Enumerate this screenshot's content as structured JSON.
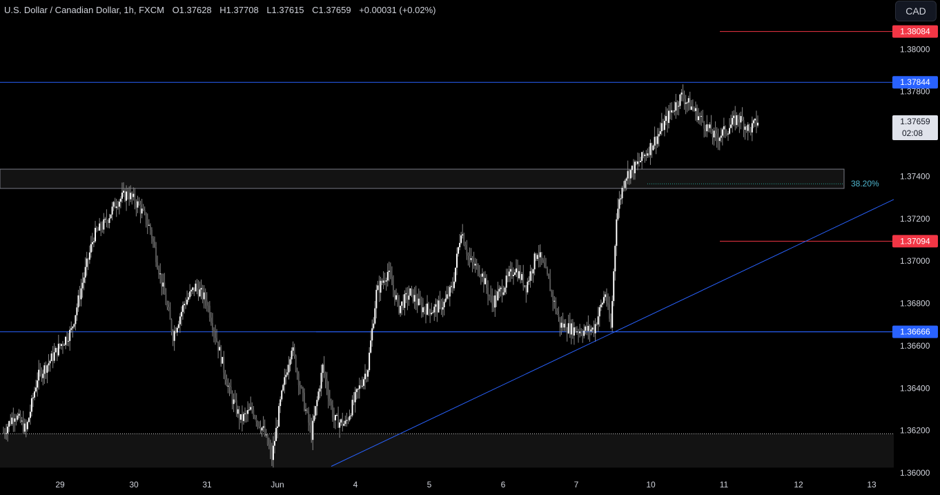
{
  "header": {
    "symbol": "U.S. Dollar / Canadian Dollar, 1h, FXCM",
    "open": "O1.37628",
    "high": "H1.37708",
    "low": "L1.37615",
    "close": "C1.37659",
    "change": "+0.00031 (+0.02%)"
  },
  "currency_button": "CAD",
  "chart_data": {
    "type": "candlestick",
    "x_ticks": [
      "29",
      "30",
      "31",
      "Jun",
      "4",
      "5",
      "6",
      "7",
      "10",
      "11",
      "12",
      "13"
    ],
    "y_ticks": [
      1.36,
      1.362,
      1.364,
      1.366,
      1.368,
      1.37,
      1.372,
      1.374,
      1.376,
      1.378,
      1.38
    ],
    "ylim": [
      1.36,
      1.382
    ],
    "price_labels": [
      {
        "value": 1.38084,
        "text": "1.38084",
        "color": "#f23645"
      },
      {
        "value": 1.37844,
        "text": "1.37844",
        "color": "#2962ff"
      },
      {
        "value": 1.37659,
        "text": "1.37659",
        "sub": "02:08",
        "color": "#e0e3eb"
      },
      {
        "value": 1.37094,
        "text": "1.37094",
        "color": "#f23645"
      },
      {
        "value": 1.36666,
        "text": "1.36666",
        "color": "#2962ff"
      }
    ],
    "levels": [
      {
        "value": 1.38084,
        "color": "#f23645"
      },
      {
        "value": 1.37844,
        "color": "#2962ff"
      },
      {
        "value": 1.37094,
        "color": "#f23645"
      },
      {
        "value": 1.36666,
        "color": "#2962ff"
      }
    ],
    "zones": [
      {
        "from": 1.37343,
        "to": 1.37434
      },
      {
        "from": 1.36025,
        "to": 1.36185
      }
    ],
    "fib_label": "38.20%",
    "fib_value": 1.37365,
    "trendline": {
      "from": 1.36031,
      "to": 1.37291
    },
    "candles_hint": "approximate hourly OHLC path",
    "path": [
      [
        0,
        1.3619
      ],
      [
        8,
        1.3628
      ],
      [
        16,
        1.362
      ],
      [
        24,
        1.3645
      ],
      [
        32,
        1.3652
      ],
      [
        40,
        1.366
      ],
      [
        48,
        1.3667
      ],
      [
        56,
        1.369
      ],
      [
        64,
        1.3712
      ],
      [
        72,
        1.3718
      ],
      [
        80,
        1.3728
      ],
      [
        88,
        1.3732
      ],
      [
        96,
        1.3726
      ],
      [
        104,
        1.3715
      ],
      [
        112,
        1.369
      ],
      [
        120,
        1.3665
      ],
      [
        128,
        1.368
      ],
      [
        136,
        1.3688
      ],
      [
        144,
        1.3681
      ],
      [
        152,
        1.366
      ],
      [
        160,
        1.3638
      ],
      [
        168,
        1.3625
      ],
      [
        176,
        1.363
      ],
      [
        184,
        1.362
      ],
      [
        190,
        1.3607
      ],
      [
        196,
        1.3633
      ],
      [
        204,
        1.366
      ],
      [
        212,
        1.3635
      ],
      [
        218,
        1.3618
      ],
      [
        226,
        1.365
      ],
      [
        234,
        1.3625
      ],
      [
        242,
        1.3623
      ],
      [
        250,
        1.3637
      ],
      [
        258,
        1.365
      ],
      [
        264,
        1.3685
      ],
      [
        272,
        1.3695
      ],
      [
        280,
        1.3678
      ],
      [
        288,
        1.3685
      ],
      [
        296,
        1.3678
      ],
      [
        304,
        1.3677
      ],
      [
        312,
        1.368
      ],
      [
        318,
        1.3688
      ],
      [
        324,
        1.3715
      ],
      [
        330,
        1.37
      ],
      [
        338,
        1.3695
      ],
      [
        346,
        1.368
      ],
      [
        354,
        1.3688
      ],
      [
        362,
        1.3697
      ],
      [
        370,
        1.3688
      ],
      [
        378,
        1.3705
      ],
      [
        386,
        1.369
      ],
      [
        394,
        1.367
      ],
      [
        402,
        1.3668
      ],
      [
        410,
        1.3667
      ],
      [
        418,
        1.3668
      ],
      [
        426,
        1.3685
      ],
      [
        430,
        1.3668
      ],
      [
        434,
        1.3722
      ],
      [
        440,
        1.374
      ],
      [
        448,
        1.3745
      ],
      [
        456,
        1.3752
      ],
      [
        464,
        1.376
      ],
      [
        472,
        1.377
      ],
      [
        480,
        1.3778
      ],
      [
        488,
        1.3772
      ],
      [
        496,
        1.3765
      ],
      [
        504,
        1.3758
      ],
      [
        512,
        1.3762
      ],
      [
        520,
        1.3768
      ],
      [
        528,
        1.3762
      ],
      [
        534,
        1.3766
      ]
    ]
  }
}
